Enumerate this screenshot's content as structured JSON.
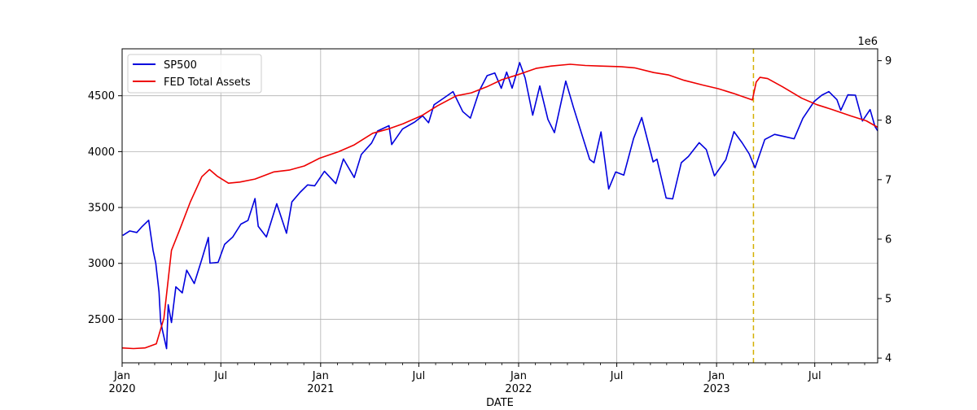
{
  "chart_data": {
    "type": "line",
    "title": "",
    "xlabel": "DATE",
    "ylabel_left": "",
    "ylabel_right": "",
    "right_axis_multiplier": "1e6",
    "x_range": [
      "2020-01-01",
      "2023-10-25"
    ],
    "ylim_left": [
      2110,
      4920
    ],
    "ylim_right": [
      3.92,
      9.2
    ],
    "grid": true,
    "legend_position": "upper left",
    "x_major_ticks": [
      {
        "date": "2020-01-01",
        "label": "Jan",
        "sublabel": "2020"
      },
      {
        "date": "2020-07-01",
        "label": "Jul",
        "sublabel": ""
      },
      {
        "date": "2021-01-01",
        "label": "Jan",
        "sublabel": "2021"
      },
      {
        "date": "2021-07-01",
        "label": "Jul",
        "sublabel": ""
      },
      {
        "date": "2022-01-01",
        "label": "Jan",
        "sublabel": "2022"
      },
      {
        "date": "2022-07-01",
        "label": "Jul",
        "sublabel": ""
      },
      {
        "date": "2023-01-01",
        "label": "Jan",
        "sublabel": "2023"
      },
      {
        "date": "2023-07-01",
        "label": "Jul",
        "sublabel": ""
      }
    ],
    "y_left_ticks": [
      2500,
      3000,
      3500,
      4000,
      4500
    ],
    "y_right_ticks": [
      4,
      5,
      6,
      7,
      8,
      9
    ],
    "vline": {
      "date": "2023-03-10",
      "color": "#d4b000",
      "style": "dashed"
    },
    "series": [
      {
        "name": "SP500",
        "axis": "left",
        "color": "#0000dd",
        "points": [
          [
            "2020-01-02",
            3250
          ],
          [
            "2020-01-15",
            3290
          ],
          [
            "2020-01-28",
            3276
          ],
          [
            "2020-02-07",
            3330
          ],
          [
            "2020-02-19",
            3386
          ],
          [
            "2020-02-27",
            3116
          ],
          [
            "2020-03-03",
            3003
          ],
          [
            "2020-03-09",
            2746
          ],
          [
            "2020-03-12",
            2480
          ],
          [
            "2020-03-16",
            2386
          ],
          [
            "2020-03-23",
            2237
          ],
          [
            "2020-03-26",
            2630
          ],
          [
            "2020-04-01",
            2470
          ],
          [
            "2020-04-09",
            2790
          ],
          [
            "2020-04-21",
            2736
          ],
          [
            "2020-04-29",
            2939
          ],
          [
            "2020-05-13",
            2820
          ],
          [
            "2020-05-27",
            3036
          ],
          [
            "2020-06-08",
            3232
          ],
          [
            "2020-06-11",
            3002
          ],
          [
            "2020-06-26",
            3009
          ],
          [
            "2020-07-08",
            3170
          ],
          [
            "2020-07-23",
            3236
          ],
          [
            "2020-08-07",
            3351
          ],
          [
            "2020-08-20",
            3385
          ],
          [
            "2020-09-02",
            3580
          ],
          [
            "2020-09-08",
            3331
          ],
          [
            "2020-09-23",
            3237
          ],
          [
            "2020-10-12",
            3534
          ],
          [
            "2020-10-30",
            3270
          ],
          [
            "2020-11-09",
            3550
          ],
          [
            "2020-11-24",
            3635
          ],
          [
            "2020-12-08",
            3702
          ],
          [
            "2020-12-21",
            3694
          ],
          [
            "2021-01-08",
            3824
          ],
          [
            "2021-01-29",
            3714
          ],
          [
            "2021-02-12",
            3934
          ],
          [
            "2021-03-04",
            3768
          ],
          [
            "2021-03-17",
            3974
          ],
          [
            "2021-04-05",
            4077
          ],
          [
            "2021-04-16",
            4185
          ],
          [
            "2021-05-07",
            4232
          ],
          [
            "2021-05-12",
            4063
          ],
          [
            "2021-06-01",
            4202
          ],
          [
            "2021-06-24",
            4266
          ],
          [
            "2021-07-08",
            4320
          ],
          [
            "2021-07-19",
            4258
          ],
          [
            "2021-07-29",
            4419
          ],
          [
            "2021-08-16",
            4479
          ],
          [
            "2021-09-02",
            4537
          ],
          [
            "2021-09-20",
            4358
          ],
          [
            "2021-10-04",
            4300
          ],
          [
            "2021-10-21",
            4549
          ],
          [
            "2021-11-04",
            4680
          ],
          [
            "2021-11-18",
            4704
          ],
          [
            "2021-11-30",
            4567
          ],
          [
            "2021-12-10",
            4712
          ],
          [
            "2021-12-20",
            4568
          ],
          [
            "2022-01-03",
            4796
          ],
          [
            "2022-01-13",
            4659
          ],
          [
            "2022-01-27",
            4326
          ],
          [
            "2022-02-09",
            4587
          ],
          [
            "2022-02-24",
            4288
          ],
          [
            "2022-03-08",
            4170
          ],
          [
            "2022-03-29",
            4631
          ],
          [
            "2022-04-12",
            4397
          ],
          [
            "2022-04-29",
            4132
          ],
          [
            "2022-05-12",
            3930
          ],
          [
            "2022-05-20",
            3901
          ],
          [
            "2022-06-02",
            4176
          ],
          [
            "2022-06-16",
            3666
          ],
          [
            "2022-06-29",
            3818
          ],
          [
            "2022-07-14",
            3790
          ],
          [
            "2022-08-01",
            4118
          ],
          [
            "2022-08-16",
            4305
          ],
          [
            "2022-09-06",
            3908
          ],
          [
            "2022-09-13",
            3932
          ],
          [
            "2022-09-30",
            3585
          ],
          [
            "2022-10-12",
            3577
          ],
          [
            "2022-10-28",
            3901
          ],
          [
            "2022-11-10",
            3956
          ],
          [
            "2022-11-30",
            4080
          ],
          [
            "2022-12-13",
            4019
          ],
          [
            "2022-12-28",
            3783
          ],
          [
            "2023-01-18",
            3928
          ],
          [
            "2023-02-02",
            4179
          ],
          [
            "2023-02-17",
            4079
          ],
          [
            "2023-03-02",
            3981
          ],
          [
            "2023-03-13",
            3855
          ],
          [
            "2023-03-31",
            4109
          ],
          [
            "2023-04-18",
            4154
          ],
          [
            "2023-05-05",
            4136
          ],
          [
            "2023-05-24",
            4115
          ],
          [
            "2023-06-09",
            4298
          ],
          [
            "2023-06-30",
            4450
          ],
          [
            "2023-07-14",
            4505
          ],
          [
            "2023-07-27",
            4537
          ],
          [
            "2023-08-11",
            4464
          ],
          [
            "2023-08-18",
            4370
          ],
          [
            "2023-08-31",
            4508
          ],
          [
            "2023-09-14",
            4505
          ],
          [
            "2023-09-27",
            4274
          ],
          [
            "2023-10-11",
            4376
          ],
          [
            "2023-10-20",
            4224
          ],
          [
            "2023-10-25",
            4186
          ]
        ]
      },
      {
        "name": "FED Total Assets",
        "axis": "right",
        "color": "#ee0000",
        "points": [
          [
            "2020-01-01",
            4.17
          ],
          [
            "2020-01-22",
            4.16
          ],
          [
            "2020-02-12",
            4.17
          ],
          [
            "2020-03-04",
            4.24
          ],
          [
            "2020-03-18",
            4.67
          ],
          [
            "2020-04-01",
            5.81
          ],
          [
            "2020-04-15",
            6.13
          ],
          [
            "2020-05-06",
            6.63
          ],
          [
            "2020-05-27",
            7.05
          ],
          [
            "2020-06-10",
            7.17
          ],
          [
            "2020-06-24",
            7.06
          ],
          [
            "2020-07-15",
            6.94
          ],
          [
            "2020-08-05",
            6.96
          ],
          [
            "2020-09-02",
            7.01
          ],
          [
            "2020-10-07",
            7.13
          ],
          [
            "2020-11-04",
            7.16
          ],
          [
            "2020-12-02",
            7.23
          ],
          [
            "2020-12-30",
            7.36
          ],
          [
            "2021-02-03",
            7.47
          ],
          [
            "2021-03-03",
            7.58
          ],
          [
            "2021-04-07",
            7.78
          ],
          [
            "2021-05-05",
            7.85
          ],
          [
            "2021-06-02",
            7.94
          ],
          [
            "2021-07-07",
            8.08
          ],
          [
            "2021-08-04",
            8.24
          ],
          [
            "2021-09-08",
            8.41
          ],
          [
            "2021-10-06",
            8.46
          ],
          [
            "2021-11-03",
            8.56
          ],
          [
            "2021-12-01",
            8.68
          ],
          [
            "2021-12-29",
            8.76
          ],
          [
            "2022-02-02",
            8.87
          ],
          [
            "2022-03-02",
            8.91
          ],
          [
            "2022-04-06",
            8.94
          ],
          [
            "2022-05-04",
            8.92
          ],
          [
            "2022-06-01",
            8.91
          ],
          [
            "2022-07-06",
            8.9
          ],
          [
            "2022-08-03",
            8.88
          ],
          [
            "2022-09-07",
            8.8
          ],
          [
            "2022-10-05",
            8.76
          ],
          [
            "2022-11-02",
            8.67
          ],
          [
            "2022-12-07",
            8.59
          ],
          [
            "2023-01-04",
            8.53
          ],
          [
            "2023-02-01",
            8.45
          ],
          [
            "2023-03-08",
            8.34
          ],
          [
            "2023-03-15",
            8.64
          ],
          [
            "2023-03-22",
            8.72
          ],
          [
            "2023-04-05",
            8.7
          ],
          [
            "2023-05-03",
            8.56
          ],
          [
            "2023-06-07",
            8.37
          ],
          [
            "2023-07-05",
            8.26
          ],
          [
            "2023-08-02",
            8.18
          ],
          [
            "2023-09-06",
            8.07
          ],
          [
            "2023-10-04",
            7.99
          ],
          [
            "2023-10-25",
            7.88
          ]
        ]
      }
    ]
  }
}
